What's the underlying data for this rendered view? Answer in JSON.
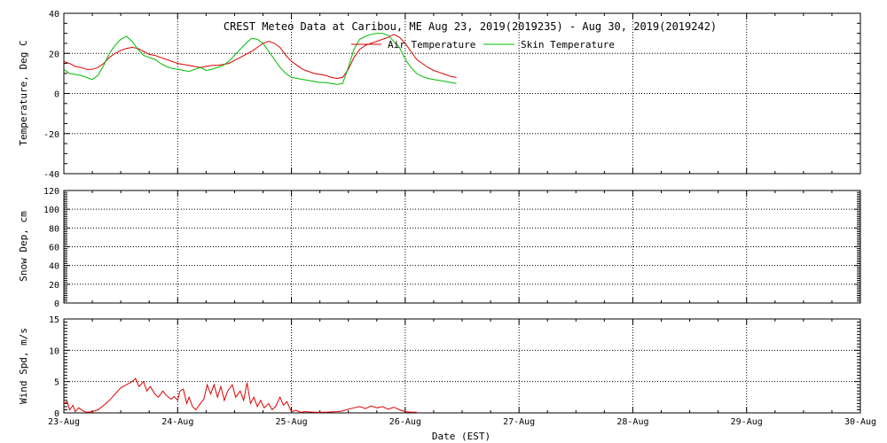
{
  "chart_data": [
    {
      "type": "line",
      "title": "CREST Meteo Data at Caribou, ME   Aug 23, 2019(2019235) - Aug 30, 2019(2019242)",
      "ylabel": "Temperature, Deg C",
      "ylim": [
        -40,
        40
      ],
      "yticks": [
        -40,
        -20,
        0,
        20,
        40
      ],
      "xlim": [
        0,
        7
      ],
      "legend_placement": "top-center",
      "grid": true,
      "series": [
        {
          "name": "Air Temperature",
          "color": "#dd0000",
          "points": [
            [
              0,
              16
            ],
            [
              0.05,
              15
            ],
            [
              0.1,
              13.5
            ],
            [
              0.15,
              13
            ],
            [
              0.2,
              12
            ],
            [
              0.25,
              12
            ],
            [
              0.3,
              13
            ],
            [
              0.35,
              15
            ],
            [
              0.4,
              18
            ],
            [
              0.45,
              20
            ],
            [
              0.5,
              21.5
            ],
            [
              0.55,
              22.5
            ],
            [
              0.6,
              23
            ],
            [
              0.65,
              22.5
            ],
            [
              0.7,
              21
            ],
            [
              0.75,
              19.5
            ],
            [
              0.8,
              19
            ],
            [
              0.85,
              18
            ],
            [
              0.9,
              17
            ],
            [
              0.95,
              16
            ],
            [
              1.0,
              15
            ],
            [
              1.05,
              14.5
            ],
            [
              1.1,
              14
            ],
            [
              1.15,
              13.5
            ],
            [
              1.2,
              13
            ],
            [
              1.25,
              13.5
            ],
            [
              1.3,
              14
            ],
            [
              1.35,
              14
            ],
            [
              1.4,
              14.5
            ],
            [
              1.45,
              15
            ],
            [
              1.5,
              16.5
            ],
            [
              1.55,
              18
            ],
            [
              1.6,
              19.5
            ],
            [
              1.65,
              21
            ],
            [
              1.7,
              23
            ],
            [
              1.75,
              25
            ],
            [
              1.8,
              26
            ],
            [
              1.85,
              25
            ],
            [
              1.9,
              23
            ],
            [
              1.95,
              19
            ],
            [
              2.0,
              16
            ],
            [
              2.05,
              14
            ],
            [
              2.1,
              12
            ],
            [
              2.15,
              11
            ],
            [
              2.2,
              10
            ],
            [
              2.25,
              9.5
            ],
            [
              2.3,
              9
            ],
            [
              2.35,
              8
            ],
            [
              2.4,
              7.5
            ],
            [
              2.45,
              8
            ],
            [
              2.5,
              12
            ],
            [
              2.55,
              18
            ],
            [
              2.6,
              22
            ],
            [
              2.65,
              24
            ],
            [
              2.7,
              25
            ],
            [
              2.75,
              26
            ],
            [
              2.8,
              27
            ],
            [
              2.85,
              28
            ],
            [
              2.9,
              29.5
            ],
            [
              2.95,
              28
            ],
            [
              3.0,
              25
            ],
            [
              3.05,
              21
            ],
            [
              3.1,
              17
            ],
            [
              3.15,
              15
            ],
            [
              3.2,
              13
            ],
            [
              3.25,
              11.5
            ],
            [
              3.3,
              10.5
            ],
            [
              3.35,
              9.5
            ],
            [
              3.4,
              8.5
            ],
            [
              3.45,
              8
            ]
          ]
        },
        {
          "name": "Skin Temperature",
          "color": "#00bb00",
          "points": [
            [
              0,
              12
            ],
            [
              0.05,
              10
            ],
            [
              0.1,
              9.5
            ],
            [
              0.15,
              9
            ],
            [
              0.2,
              8
            ],
            [
              0.25,
              7
            ],
            [
              0.3,
              9
            ],
            [
              0.35,
              14
            ],
            [
              0.4,
              20
            ],
            [
              0.45,
              24
            ],
            [
              0.5,
              27
            ],
            [
              0.55,
              28.5
            ],
            [
              0.6,
              26
            ],
            [
              0.65,
              22
            ],
            [
              0.7,
              19
            ],
            [
              0.75,
              18
            ],
            [
              0.8,
              17
            ],
            [
              0.85,
              15
            ],
            [
              0.9,
              13.5
            ],
            [
              0.95,
              12.5
            ],
            [
              1.0,
              12
            ],
            [
              1.05,
              11.5
            ],
            [
              1.1,
              11
            ],
            [
              1.15,
              12
            ],
            [
              1.2,
              13
            ],
            [
              1.25,
              11.5
            ],
            [
              1.3,
              12
            ],
            [
              1.35,
              13
            ],
            [
              1.4,
              14
            ],
            [
              1.45,
              16
            ],
            [
              1.5,
              19
            ],
            [
              1.55,
              22
            ],
            [
              1.6,
              25
            ],
            [
              1.65,
              27.5
            ],
            [
              1.7,
              27
            ],
            [
              1.75,
              25
            ],
            [
              1.8,
              21
            ],
            [
              1.85,
              17
            ],
            [
              1.9,
              13
            ],
            [
              1.95,
              10
            ],
            [
              2.0,
              8
            ],
            [
              2.05,
              7.5
            ],
            [
              2.1,
              7
            ],
            [
              2.15,
              6.5
            ],
            [
              2.2,
              6
            ],
            [
              2.25,
              5.5
            ],
            [
              2.3,
              5.5
            ],
            [
              2.35,
              5
            ],
            [
              2.4,
              4.5
            ],
            [
              2.45,
              5
            ],
            [
              2.5,
              13
            ],
            [
              2.55,
              22
            ],
            [
              2.6,
              27
            ],
            [
              2.65,
              28.5
            ],
            [
              2.7,
              29.5
            ],
            [
              2.75,
              30
            ],
            [
              2.8,
              30
            ],
            [
              2.85,
              29
            ],
            [
              2.9,
              26
            ],
            [
              2.95,
              23
            ],
            [
              3.0,
              17
            ],
            [
              3.05,
              13
            ],
            [
              3.1,
              10
            ],
            [
              3.15,
              8.5
            ],
            [
              3.2,
              7.5
            ],
            [
              3.25,
              7
            ],
            [
              3.3,
              6.5
            ],
            [
              3.35,
              6
            ],
            [
              3.4,
              5.5
            ],
            [
              3.45,
              5
            ]
          ]
        }
      ]
    },
    {
      "type": "line",
      "ylabel": "Snow Dep, cm",
      "ylim": [
        0,
        120
      ],
      "yticks": [
        0,
        20,
        40,
        60,
        80,
        100,
        120
      ],
      "xlim": [
        0,
        7
      ],
      "grid": true,
      "series": []
    },
    {
      "type": "line",
      "ylabel": "Wind Spd, m/s",
      "ylim": [
        0,
        15
      ],
      "yticks": [
        0,
        5,
        10,
        15
      ],
      "xlim": [
        0,
        7
      ],
      "xlabel": "Date (EST)",
      "xticks": [
        "23-Aug",
        "24-Aug",
        "25-Aug",
        "26-Aug",
        "27-Aug",
        "28-Aug",
        "29-Aug",
        "30-Aug"
      ],
      "grid": true,
      "series": [
        {
          "color": "#dd0000",
          "points": [
            [
              0,
              1.5
            ],
            [
              0.03,
              1.8
            ],
            [
              0.05,
              0.5
            ],
            [
              0.08,
              1.2
            ],
            [
              0.1,
              0.2
            ],
            [
              0.13,
              0.8
            ],
            [
              0.17,
              0.3
            ],
            [
              0.2,
              0.1
            ],
            [
              0.25,
              0.2
            ],
            [
              0.3,
              0.5
            ],
            [
              0.35,
              1.2
            ],
            [
              0.4,
              2
            ],
            [
              0.45,
              3
            ],
            [
              0.5,
              4
            ],
            [
              0.55,
              4.5
            ],
            [
              0.6,
              5
            ],
            [
              0.63,
              5.5
            ],
            [
              0.66,
              4.2
            ],
            [
              0.7,
              5
            ],
            [
              0.73,
              3.5
            ],
            [
              0.76,
              4.2
            ],
            [
              0.8,
              3
            ],
            [
              0.83,
              2.5
            ],
            [
              0.87,
              3.5
            ],
            [
              0.9,
              2.8
            ],
            [
              0.94,
              2.2
            ],
            [
              0.97,
              2.6
            ],
            [
              1.0,
              2
            ],
            [
              1.02,
              3.5
            ],
            [
              1.05,
              3.8
            ],
            [
              1.08,
              1.5
            ],
            [
              1.1,
              2.5
            ],
            [
              1.13,
              1
            ],
            [
              1.16,
              0.5
            ],
            [
              1.2,
              1.5
            ],
            [
              1.23,
              2.2
            ],
            [
              1.26,
              4.5
            ],
            [
              1.29,
              3
            ],
            [
              1.32,
              4.5
            ],
            [
              1.35,
              2.5
            ],
            [
              1.38,
              4.2
            ],
            [
              1.41,
              2
            ],
            [
              1.44,
              3.5
            ],
            [
              1.48,
              4.5
            ],
            [
              1.51,
              2.5
            ],
            [
              1.55,
              3.5
            ],
            [
              1.58,
              2
            ],
            [
              1.61,
              4.8
            ],
            [
              1.64,
              1.5
            ],
            [
              1.67,
              2.5
            ],
            [
              1.7,
              1
            ],
            [
              1.73,
              2
            ],
            [
              1.76,
              0.8
            ],
            [
              1.8,
              1.5
            ],
            [
              1.83,
              0.5
            ],
            [
              1.86,
              1
            ],
            [
              1.9,
              2.5
            ],
            [
              1.93,
              1.2
            ],
            [
              1.96,
              1.8
            ],
            [
              2.0,
              0.2
            ],
            [
              2.04,
              0.4
            ],
            [
              2.08,
              0.1
            ],
            [
              2.12,
              0.2
            ],
            [
              2.2,
              0.1
            ],
            [
              2.3,
              0.1
            ],
            [
              2.4,
              0.2
            ],
            [
              2.45,
              0.3
            ],
            [
              2.5,
              0.6
            ],
            [
              2.55,
              0.8
            ],
            [
              2.6,
              1
            ],
            [
              2.65,
              0.7
            ],
            [
              2.7,
              1.1
            ],
            [
              2.75,
              0.8
            ],
            [
              2.8,
              1
            ],
            [
              2.85,
              0.6
            ],
            [
              2.9,
              0.9
            ],
            [
              2.95,
              0.5
            ],
            [
              3.0,
              0.2
            ],
            [
              3.05,
              0.1
            ],
            [
              3.1,
              0.1
            ]
          ]
        }
      ]
    }
  ]
}
